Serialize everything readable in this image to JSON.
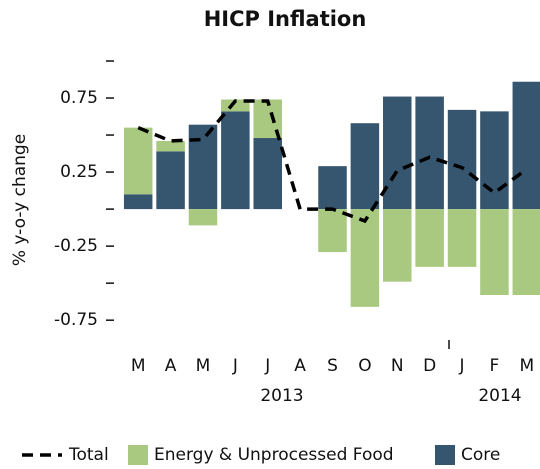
{
  "chart_data": {
    "type": "bar",
    "title": "HICP Inflation",
    "y_label": "% y-o-y change",
    "categories": [
      "M",
      "A",
      "M",
      "J",
      "J",
      "A",
      "S",
      "O",
      "N",
      "D",
      "J",
      "F",
      "M"
    ],
    "year_labels": [
      "2013",
      "2014"
    ],
    "series": [
      {
        "name": "Total",
        "type": "line",
        "color": "#000000",
        "dashed": true,
        "values": [
          0.55,
          0.46,
          0.47,
          0.73,
          0.73,
          0.0,
          0.0,
          -0.08,
          0.26,
          0.35,
          0.28,
          0.11,
          0.27
        ]
      },
      {
        "name": "Energy & Unprocessed Food",
        "type": "bar",
        "color": "#a8c97f",
        "values": [
          0.45,
          0.07,
          -0.11,
          0.08,
          0.26,
          null,
          -0.29,
          -0.66,
          -0.49,
          -0.39,
          -0.39,
          -0.58,
          -0.58
        ]
      },
      {
        "name": "Core",
        "type": "bar",
        "color": "#36566f",
        "values": [
          0.1,
          0.39,
          0.57,
          0.66,
          0.48,
          null,
          0.29,
          0.58,
          0.76,
          0.76,
          0.67,
          0.66,
          0.86
        ]
      }
    ],
    "ylim": [
      -0.85,
      1.0
    ],
    "yticks": [
      -0.75,
      -0.25,
      0.25,
      0.75
    ],
    "minor_yticks": [
      -0.5,
      0,
      0.5,
      1
    ],
    "grid": false
  }
}
